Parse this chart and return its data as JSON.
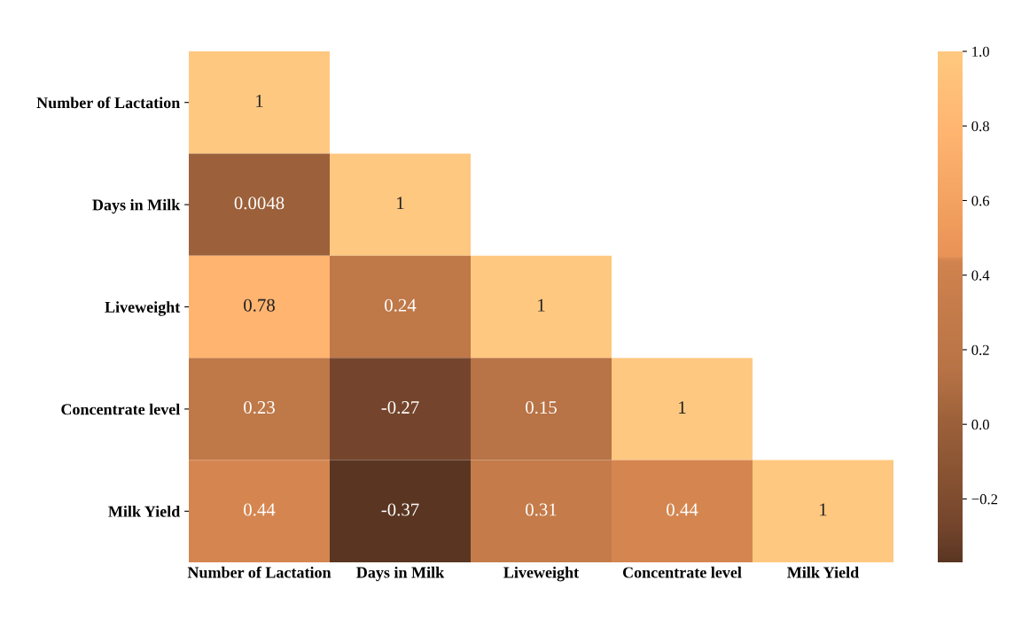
{
  "chart_data": {
    "type": "heatmap",
    "categories": [
      "Number of Lactation",
      "Days in Milk",
      "Liveweight",
      "Concentrate level",
      "Milk Yield"
    ],
    "y_categories": [
      "Number of Lactation",
      "Days in Milk",
      "Liveweight",
      "Concentrate level",
      "Milk Yield"
    ],
    "cells": [
      [
        1,
        null,
        null,
        null,
        null
      ],
      [
        0.0048,
        1,
        null,
        null,
        null
      ],
      [
        0.78,
        0.24,
        1,
        null,
        null
      ],
      [
        0.23,
        -0.27,
        0.15,
        1,
        null
      ],
      [
        0.44,
        -0.37,
        0.31,
        0.44,
        1
      ]
    ],
    "data_labels": true,
    "clim": [
      -0.37,
      1
    ],
    "cticks": [
      {
        "value": -0.2,
        "label": "−0.2"
      },
      {
        "value": 0,
        "label": "0.0"
      },
      {
        "value": 0.2,
        "label": "0.2"
      },
      {
        "value": 0.4,
        "label": "0.4"
      },
      {
        "value": 0.6,
        "label": "0.6"
      },
      {
        "value": 0.8,
        "label": "0.8"
      },
      {
        "value": 1,
        "label": "1.0"
      }
    ]
  }
}
